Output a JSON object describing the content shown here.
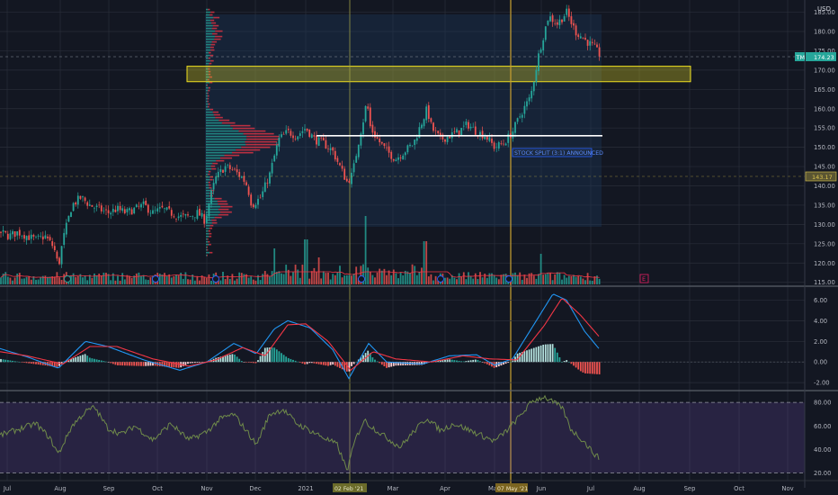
{
  "chart_data": [
    {
      "type": "candlestick",
      "panel": "price",
      "symbol": "TM",
      "currency": "USD",
      "last_price": "174.23",
      "marked_price": "143.17",
      "x_labels": [
        "Jul",
        "Aug",
        "Sep",
        "Oct",
        "Nov",
        "Dec",
        "2021",
        "Feb",
        "Mar",
        "Apr",
        "May",
        "Jun",
        "Jul",
        "Aug",
        "Sep",
        "Oct",
        "Nov"
      ],
      "x_axis_date_labels": [
        "02 Feb '21",
        "07 May '21"
      ],
      "y_ticks": [
        115,
        120,
        125,
        130,
        135,
        140,
        145,
        150,
        155,
        160,
        165,
        170,
        175,
        180,
        185
      ],
      "y_range": [
        114,
        187
      ],
      "annotation": "STOCK SPLIT (3:1) ANNOUNCED",
      "support_zone": [
        167,
        171
      ],
      "horizontal_line": 153,
      "events_badge": "E",
      "volume_profile": "visible range volume profile, Nov 2020 – Jul 2021",
      "close_approx": [
        [
          0,
          128
        ],
        [
          10,
          127
        ],
        [
          20,
          128
        ],
        [
          30,
          127
        ],
        [
          40,
          126
        ],
        [
          50,
          127
        ],
        [
          60,
          124
        ],
        [
          65,
          119
        ],
        [
          70,
          126
        ],
        [
          80,
          135
        ],
        [
          90,
          137
        ],
        [
          100,
          135
        ],
        [
          110,
          134
        ],
        [
          120,
          133
        ],
        [
          130,
          134
        ],
        [
          140,
          133
        ],
        [
          150,
          134
        ],
        [
          160,
          135
        ],
        [
          170,
          133
        ],
        [
          180,
          134
        ],
        [
          190,
          133
        ],
        [
          200,
          132
        ],
        [
          210,
          132
        ],
        [
          220,
          133
        ],
        [
          228,
          131
        ],
        [
          235,
          138
        ],
        [
          240,
          142
        ],
        [
          250,
          145
        ],
        [
          260,
          144
        ],
        [
          270,
          142
        ],
        [
          275,
          140
        ],
        [
          280,
          135
        ],
        [
          290,
          137
        ],
        [
          300,
          143
        ],
        [
          310,
          152
        ],
        [
          320,
          154
        ],
        [
          330,
          153
        ],
        [
          340,
          155
        ],
        [
          350,
          152
        ],
        [
          360,
          151
        ],
        [
          370,
          149
        ],
        [
          378,
          145
        ],
        [
          386,
          141
        ],
        [
          392,
          143
        ],
        [
          396,
          148
        ],
        [
          400,
          153
        ],
        [
          404,
          157
        ],
        [
          408,
          162
        ],
        [
          412,
          155
        ],
        [
          420,
          152
        ],
        [
          430,
          149
        ],
        [
          440,
          147
        ],
        [
          450,
          149
        ],
        [
          460,
          151
        ],
        [
          470,
          157
        ],
        [
          475,
          160
        ],
        [
          480,
          155
        ],
        [
          490,
          152
        ],
        [
          500,
          153
        ],
        [
          510,
          154
        ],
        [
          520,
          156
        ],
        [
          530,
          154
        ],
        [
          540,
          153
        ],
        [
          550,
          150
        ],
        [
          560,
          151
        ],
        [
          570,
          154
        ],
        [
          580,
          159
        ],
        [
          590,
          163
        ],
        [
          600,
          175
        ],
        [
          610,
          184
        ],
        [
          620,
          182
        ],
        [
          630,
          185
        ],
        [
          640,
          180
        ],
        [
          650,
          178
        ],
        [
          660,
          176
        ],
        [
          667,
          174
        ]
      ]
    },
    {
      "type": "bar",
      "panel": "volume",
      "description_values": "volume bars with moving average, spike near Feb 2021"
    },
    {
      "type": "line",
      "panel": "macd",
      "y_ticks": [
        -2.0,
        0.0,
        2.0,
        4.0,
        6.0
      ],
      "y_tick_labels": [
        "-2.00",
        "0.00",
        "2.00",
        "4.00",
        "6.00"
      ],
      "y_range": [
        -2.6,
        7.0
      ],
      "macd_approx": [
        [
          0,
          1.3
        ],
        [
          30,
          0.5
        ],
        [
          65,
          -0.6
        ],
        [
          95,
          2.0
        ],
        [
          120,
          1.5
        ],
        [
          160,
          0.2
        ],
        [
          200,
          -0.8
        ],
        [
          230,
          0.0
        ],
        [
          260,
          1.8
        ],
        [
          285,
          0.8
        ],
        [
          305,
          3.2
        ],
        [
          320,
          4.0
        ],
        [
          345,
          3.3
        ],
        [
          370,
          1.2
        ],
        [
          388,
          -1.6
        ],
        [
          410,
          1.8
        ],
        [
          430,
          0.0
        ],
        [
          470,
          -0.2
        ],
        [
          500,
          0.6
        ],
        [
          530,
          0.7
        ],
        [
          550,
          -0.3
        ],
        [
          570,
          0.3
        ],
        [
          600,
          4.5
        ],
        [
          615,
          6.6
        ],
        [
          630,
          6.0
        ],
        [
          650,
          3.0
        ],
        [
          667,
          1.2
        ]
      ],
      "signal_approx": [
        [
          0,
          1.0
        ],
        [
          30,
          0.6
        ],
        [
          70,
          -0.2
        ],
        [
          100,
          1.5
        ],
        [
          130,
          1.5
        ],
        [
          170,
          0.3
        ],
        [
          210,
          -0.4
        ],
        [
          240,
          0.2
        ],
        [
          270,
          1.4
        ],
        [
          295,
          0.6
        ],
        [
          320,
          3.6
        ],
        [
          340,
          3.7
        ],
        [
          365,
          2.0
        ],
        [
          390,
          -0.8
        ],
        [
          415,
          1.0
        ],
        [
          440,
          0.3
        ],
        [
          480,
          0.0
        ],
        [
          515,
          0.6
        ],
        [
          545,
          0.3
        ],
        [
          575,
          0.2
        ],
        [
          605,
          3.5
        ],
        [
          625,
          6.2
        ],
        [
          645,
          4.6
        ],
        [
          667,
          2.4
        ]
      ]
    },
    {
      "type": "line",
      "panel": "rsi",
      "y_ticks": [
        20,
        40,
        60,
        80
      ],
      "y_tick_labels": [
        "20.00",
        "40.00",
        "60.00",
        "80.00"
      ],
      "y_range": [
        15,
        87
      ],
      "band": [
        20,
        80
      ],
      "rsi_approx": [
        [
          0,
          52
        ],
        [
          20,
          57
        ],
        [
          40,
          62
        ],
        [
          55,
          50
        ],
        [
          65,
          36
        ],
        [
          80,
          60
        ],
        [
          95,
          72
        ],
        [
          105,
          76
        ],
        [
          120,
          58
        ],
        [
          135,
          53
        ],
        [
          150,
          60
        ],
        [
          170,
          48
        ],
        [
          190,
          62
        ],
        [
          210,
          48
        ],
        [
          230,
          55
        ],
        [
          245,
          66
        ],
        [
          260,
          70
        ],
        [
          275,
          55
        ],
        [
          285,
          44
        ],
        [
          300,
          70
        ],
        [
          315,
          74
        ],
        [
          330,
          62
        ],
        [
          345,
          56
        ],
        [
          360,
          50
        ],
        [
          375,
          44
        ],
        [
          386,
          22
        ],
        [
          395,
          48
        ],
        [
          405,
          65
        ],
        [
          412,
          60
        ],
        [
          430,
          50
        ],
        [
          445,
          42
        ],
        [
          460,
          55
        ],
        [
          475,
          67
        ],
        [
          490,
          56
        ],
        [
          505,
          62
        ],
        [
          520,
          57
        ],
        [
          535,
          52
        ],
        [
          550,
          47
        ],
        [
          565,
          57
        ],
        [
          580,
          70
        ],
        [
          592,
          81
        ],
        [
          605,
          85
        ],
        [
          615,
          80
        ],
        [
          625,
          76
        ],
        [
          635,
          57
        ],
        [
          648,
          48
        ],
        [
          660,
          37
        ],
        [
          667,
          32
        ]
      ]
    }
  ]
}
